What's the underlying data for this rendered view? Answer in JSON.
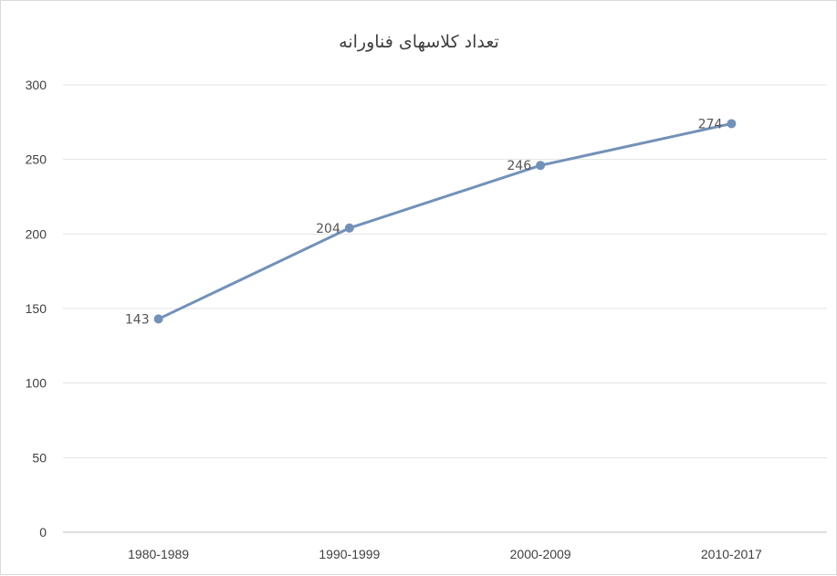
{
  "chart_data": {
    "type": "line",
    "title": "تعداد کلاسهای فناورانه",
    "xlabel": "",
    "ylabel": "",
    "categories": [
      "1980-1989",
      "1990-1999",
      "2000-2009",
      "2010-2017"
    ],
    "series": [
      {
        "values": [
          143,
          204,
          246,
          274
        ],
        "color": "#7391b8",
        "marker": "circle"
      }
    ],
    "data_labels": [
      "143",
      "204",
      "246",
      "274"
    ],
    "ylim": [
      0,
      300
    ],
    "yticks": [
      0,
      50,
      100,
      150,
      200,
      250,
      300
    ],
    "ytick_labels": [
      "0",
      "50",
      "100",
      "150",
      "200",
      "250",
      "300"
    ],
    "grid": true,
    "legend": "none"
  }
}
